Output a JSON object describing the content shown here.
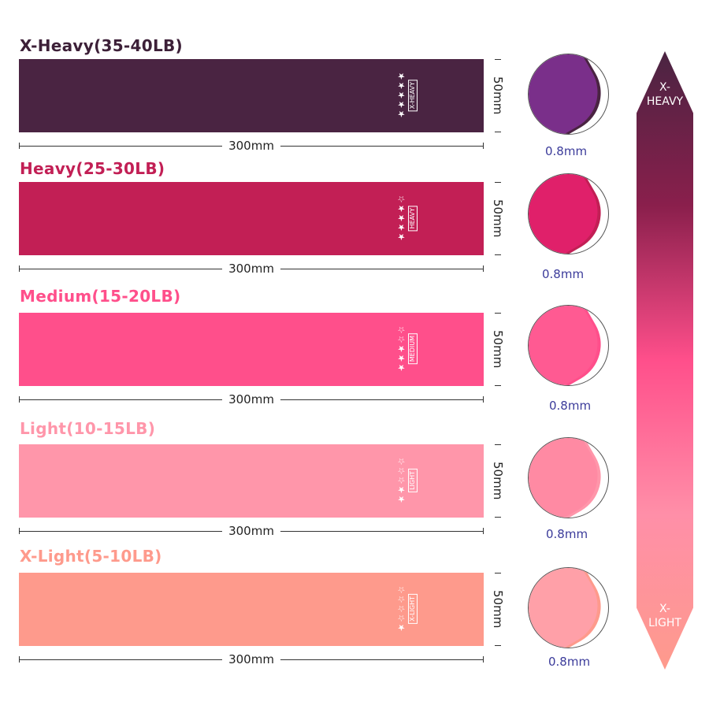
{
  "bands": [
    {
      "label": "X-Heavy(35-40LB)",
      "tag": "X-HEAVY",
      "stars": "★★★★★",
      "color": "#4a2442",
      "label_color": "#3d2038",
      "width": "300mm",
      "height": "50mm",
      "thickness": "0.8mm",
      "fold": "#7a2f8a"
    },
    {
      "label": "Heavy(25-30LB)",
      "tag": "HEAVY",
      "stars": "★★★★☆",
      "color": "#c21f55",
      "label_color": "#c21f55",
      "width": "300mm",
      "height": "50mm",
      "thickness": "0.8mm",
      "fold": "#e0206a"
    },
    {
      "label": "Medium(15-20LB)",
      "tag": "MEDIUM",
      "stars": "★★★☆☆",
      "color": "#ff4f8b",
      "label_color": "#ff4f8b",
      "width": "300mm",
      "height": "50mm",
      "thickness": "0.8mm",
      "fold": "#ff5a92"
    },
    {
      "label": "Light(10-15LB)",
      "tag": "LIGHT",
      "stars": "★★☆☆☆",
      "color": "#ff96aa",
      "label_color": "#ff96aa",
      "width": "300mm",
      "height": "50mm",
      "thickness": "0.8mm",
      "fold": "#ff8aa3"
    },
    {
      "label": "X-Light(5-10LB)",
      "tag": "X-LIGHT",
      "stars": "★☆☆☆☆",
      "color": "#fe9a8c",
      "label_color": "#fe9a8c",
      "width": "300mm",
      "height": "50mm",
      "thickness": "0.8mm",
      "fold": "#ffa0a8"
    }
  ],
  "scale": {
    "top_line1": "X-",
    "top_line2": "HEAVY",
    "bottom_line1": "X-",
    "bottom_line2": "LIGHT"
  }
}
